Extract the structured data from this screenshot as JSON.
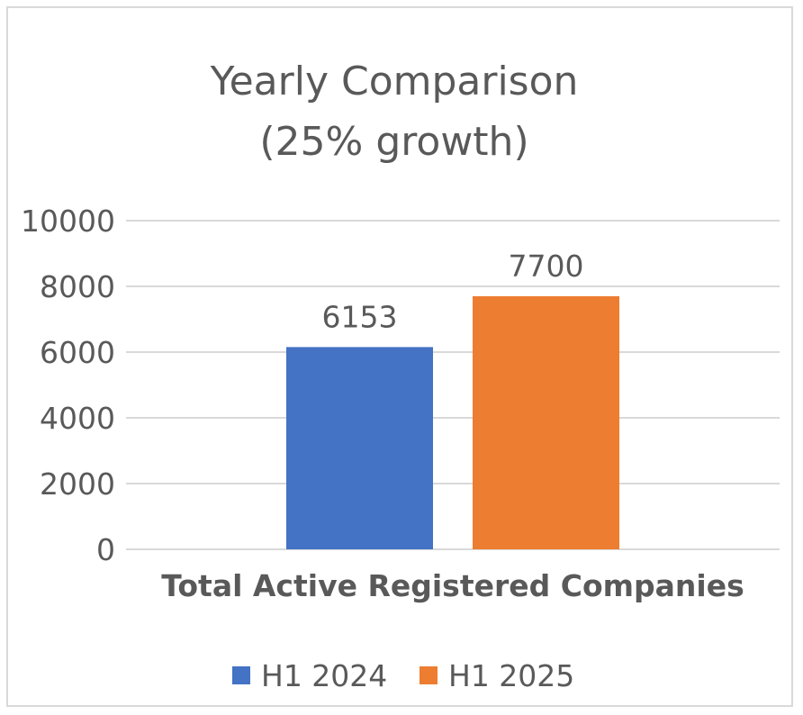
{
  "chart_data": {
    "type": "bar",
    "title_lines": [
      "Yearly Comparison",
      "(25% growth)"
    ],
    "categories": [
      "Total Active Registered Companies"
    ],
    "series": [
      {
        "name": "H1 2024",
        "values": [
          6153
        ],
        "color": "#4472c4"
      },
      {
        "name": "H1 2025",
        "values": [
          7700
        ],
        "color": "#ed7d31"
      }
    ],
    "data_labels": [
      "6153",
      "7700"
    ],
    "y_ticks": [
      "0",
      "2000",
      "4000",
      "6000",
      "8000",
      "10000"
    ],
    "ylim": [
      0,
      10000
    ],
    "grid": true,
    "legend_position": "bottom",
    "colors": {
      "text": "#595959",
      "gridline": "#d9d9d9",
      "border": "#d9d9d9"
    }
  }
}
